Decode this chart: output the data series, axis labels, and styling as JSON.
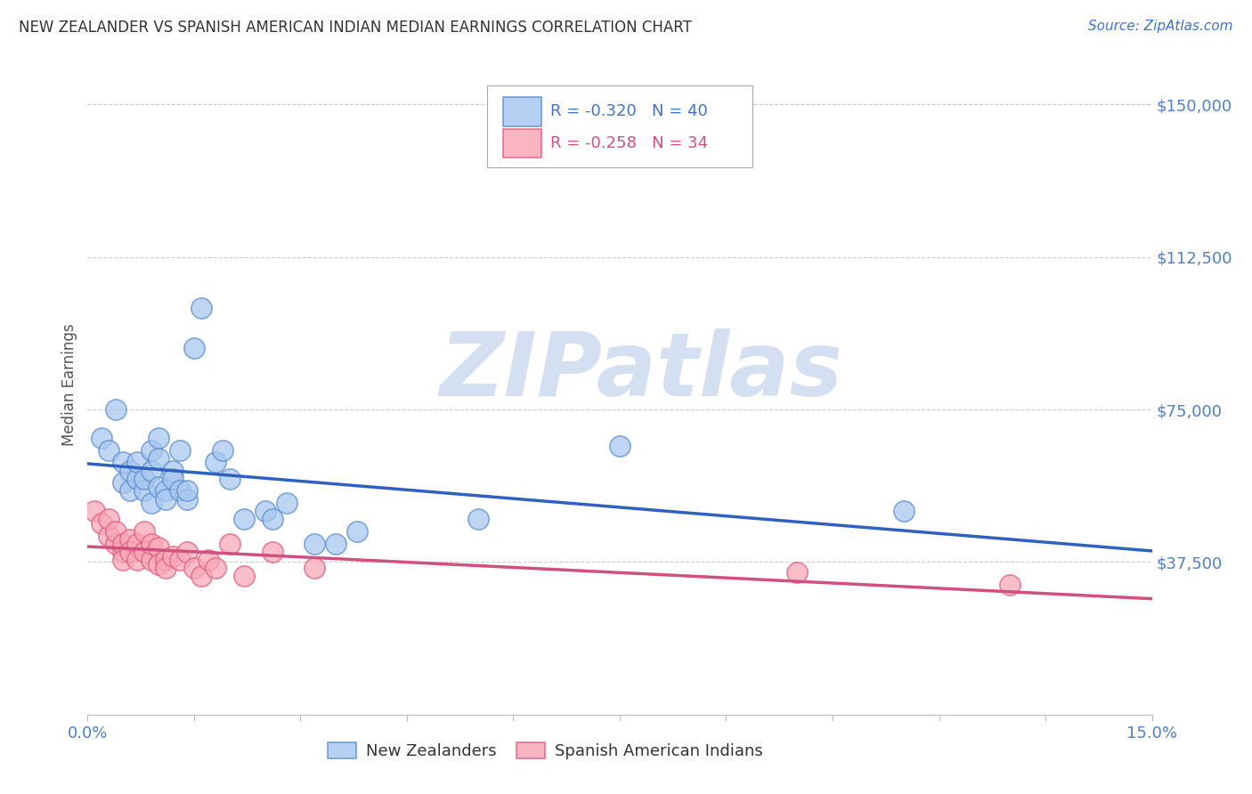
{
  "title": "NEW ZEALANDER VS SPANISH AMERICAN INDIAN MEDIAN EARNINGS CORRELATION CHART",
  "source": "Source: ZipAtlas.com",
  "ylabel": "Median Earnings",
  "xlim": [
    0.0,
    0.15
  ],
  "ylim": [
    0,
    162000
  ],
  "yticks": [
    0,
    37500,
    75000,
    112500,
    150000
  ],
  "yticklabels": [
    "",
    "$37,500",
    "$75,000",
    "$112,500",
    "$150,000"
  ],
  "xticks": [
    0.0,
    0.015,
    0.03,
    0.045,
    0.06,
    0.075,
    0.09,
    0.105,
    0.12,
    0.135,
    0.15
  ],
  "xticklabels_show": {
    "0.0": "0.0%",
    "0.15": "15.0%"
  },
  "nz_R": -0.32,
  "nz_N": 40,
  "sai_R": -0.258,
  "sai_N": 34,
  "nz_color": "#A8C8F0",
  "sai_color": "#F8A8B8",
  "nz_edge_color": "#6090D0",
  "sai_edge_color": "#E06080",
  "nz_line_color": "#3060C0",
  "sai_line_color": "#D05080",
  "nz_dash_color": "#90B8E8",
  "watermark_color": "#D0DCF0",
  "legend_text_color": "#4472C4",
  "tick_color": "#5080C0",
  "nz_x": [
    0.002,
    0.003,
    0.004,
    0.005,
    0.005,
    0.006,
    0.006,
    0.007,
    0.007,
    0.008,
    0.008,
    0.009,
    0.009,
    0.009,
    0.01,
    0.01,
    0.01,
    0.011,
    0.011,
    0.012,
    0.012,
    0.013,
    0.013,
    0.014,
    0.014,
    0.015,
    0.016,
    0.018,
    0.019,
    0.02,
    0.022,
    0.025,
    0.026,
    0.028,
    0.032,
    0.035,
    0.038,
    0.055,
    0.075,
    0.115
  ],
  "nz_y": [
    68000,
    65000,
    75000,
    62000,
    57000,
    60000,
    55000,
    58000,
    62000,
    55000,
    58000,
    52000,
    60000,
    65000,
    56000,
    63000,
    68000,
    55000,
    53000,
    60000,
    58000,
    65000,
    55000,
    53000,
    55000,
    90000,
    100000,
    62000,
    65000,
    58000,
    48000,
    50000,
    48000,
    52000,
    42000,
    42000,
    45000,
    48000,
    66000,
    50000
  ],
  "sai_x": [
    0.001,
    0.002,
    0.003,
    0.003,
    0.004,
    0.004,
    0.005,
    0.005,
    0.005,
    0.006,
    0.006,
    0.007,
    0.007,
    0.008,
    0.008,
    0.009,
    0.009,
    0.01,
    0.01,
    0.011,
    0.011,
    0.012,
    0.013,
    0.014,
    0.015,
    0.016,
    0.017,
    0.018,
    0.02,
    0.022,
    0.026,
    0.032,
    0.1,
    0.13
  ],
  "sai_y": [
    50000,
    47000,
    44000,
    48000,
    42000,
    45000,
    40000,
    42000,
    38000,
    43000,
    40000,
    42000,
    38000,
    45000,
    40000,
    38000,
    42000,
    41000,
    37000,
    38000,
    36000,
    39000,
    38000,
    40000,
    36000,
    34000,
    38000,
    36000,
    42000,
    34000,
    40000,
    36000,
    35000,
    32000
  ]
}
